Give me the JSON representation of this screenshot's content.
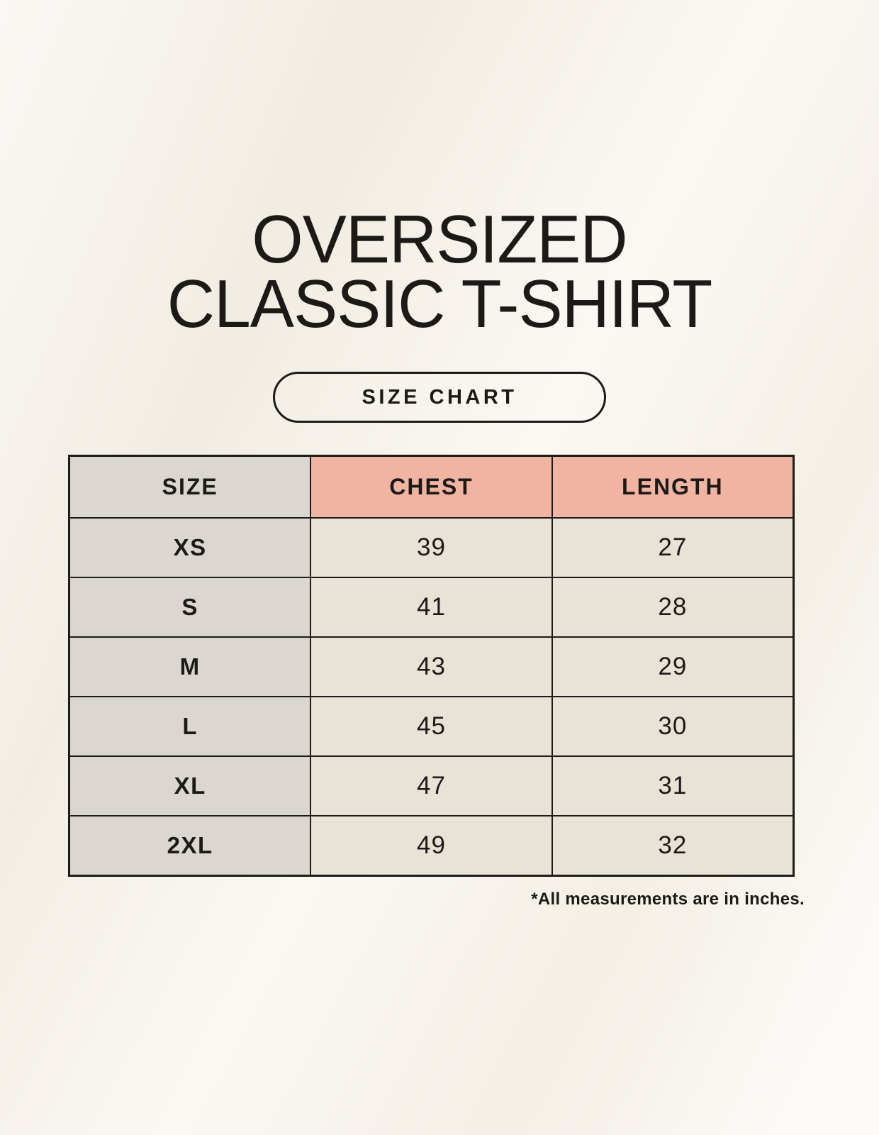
{
  "page": {
    "title_line1": "OVERSIZED",
    "title_line2": "CLASSIC T-SHIRT",
    "size_chart_label": "SIZE CHART",
    "footnote": "*All measurements are in inches."
  },
  "chart_data": {
    "type": "table",
    "title": "OVERSIZED CLASSIC T-SHIRT",
    "subtitle": "SIZE CHART",
    "columns": [
      "SIZE",
      "CHEST",
      "LENGTH"
    ],
    "rows": [
      [
        "XS",
        39,
        27
      ],
      [
        "S",
        41,
        28
      ],
      [
        "M",
        43,
        29
      ],
      [
        "L",
        45,
        30
      ],
      [
        "XL",
        47,
        31
      ],
      [
        "2XL",
        49,
        32
      ]
    ],
    "note": "*All measurements are in inches.",
    "units": "inches"
  },
  "colors": {
    "page-bg": "#f9f5ee",
    "header-pink": "#f2b4a2",
    "size-col-gray": "#dcd6d1",
    "cell-cream": "#e9e3d7",
    "border-dark": "#1d1b18",
    "text-dark": "#1c1a17"
  }
}
